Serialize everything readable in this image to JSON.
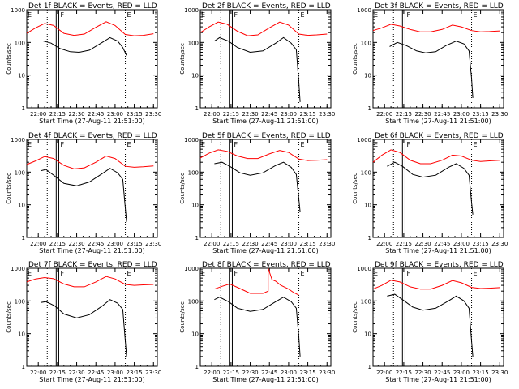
{
  "colors": {
    "events": "#000000",
    "lld": "#ff0000",
    "background": "#ffffff",
    "axes": "#000000"
  },
  "chart_data": [
    {
      "type": "line",
      "title": "Det 1f BLACK = Events, RED = LLD",
      "xlabel": "Start Time (27-Aug-11 21:51:00)",
      "ylabel": "Counts/sec",
      "yscale": "log",
      "ylim": [
        1,
        1000
      ],
      "xticks": [
        "22:00",
        "22:15",
        "22:30",
        "22:45",
        "23:00",
        "23:15",
        "23:30"
      ],
      "yticks": [
        "1",
        "10",
        "100",
        "1000"
      ],
      "markers": [
        "E",
        "F",
        "E"
      ],
      "series": [
        {
          "name": "Events",
          "color": "#000000",
          "x": [
            "22:04",
            "22:10",
            "22:17",
            "22:25",
            "22:32",
            "22:40",
            "22:48",
            "22:56",
            "23:02",
            "23:06",
            "23:09"
          ],
          "y": [
            110,
            95,
            65,
            52,
            50,
            58,
            90,
            140,
            110,
            70,
            40
          ]
        },
        {
          "name": "LLD",
          "color": "#ff0000",
          "x": [
            "21:51",
            "21:58",
            "22:05",
            "22:12",
            "22:20",
            "22:28",
            "22:36",
            "22:45",
            "22:53",
            "23:00",
            "23:08",
            "23:15",
            "23:22",
            "23:30"
          ],
          "y": [
            190,
            280,
            380,
            330,
            190,
            165,
            180,
            290,
            430,
            330,
            175,
            160,
            165,
            185
          ]
        }
      ]
    },
    {
      "type": "line",
      "title": "Det 2f BLACK = Events, RED = LLD",
      "xlabel": "Start Time (27-Aug-11 21:51:00)",
      "ylabel": "Counts/sec",
      "yscale": "log",
      "ylim": [
        1,
        1000
      ],
      "xticks": [
        "22:00",
        "22:15",
        "22:30",
        "22:45",
        "23:00",
        "23:15",
        "23:30"
      ],
      "yticks": [
        "1",
        "10",
        "100",
        "1000"
      ],
      "markers": [
        "E",
        "F",
        "E"
      ],
      "series": [
        {
          "name": "Events",
          "color": "#000000",
          "x": [
            "22:02",
            "22:06",
            "22:13",
            "22:20",
            "22:30",
            "22:40",
            "22:50",
            "22:56",
            "23:02",
            "23:06",
            "23:08",
            "23:09"
          ],
          "y": [
            110,
            140,
            110,
            70,
            50,
            55,
            95,
            140,
            95,
            60,
            6,
            1.5
          ]
        },
        {
          "name": "LLD",
          "color": "#ff0000",
          "x": [
            "21:51",
            "21:58",
            "22:05",
            "22:12",
            "22:20",
            "22:28",
            "22:36",
            "22:45",
            "22:53",
            "23:00",
            "23:08",
            "23:15",
            "23:22",
            "23:30"
          ],
          "y": [
            200,
            300,
            420,
            360,
            220,
            160,
            170,
            280,
            420,
            340,
            180,
            165,
            170,
            180
          ]
        }
      ]
    },
    {
      "type": "line",
      "title": "Det 3f BLACK = Events, RED = LLD",
      "xlabel": "Start Time (27-Aug-11 21:51:00)",
      "ylabel": "Counts/sec",
      "yscale": "log",
      "ylim": [
        1,
        1000
      ],
      "xticks": [
        "22:00",
        "22:15",
        "22:30",
        "22:45",
        "23:00",
        "23:15",
        "23:30"
      ],
      "yticks": [
        "1",
        "10",
        "100",
        "1000"
      ],
      "markers": [
        "E",
        "F",
        "E"
      ],
      "series": [
        {
          "name": "Events",
          "color": "#000000",
          "x": [
            "22:04",
            "22:10",
            "22:17",
            "22:25",
            "22:32",
            "22:40",
            "22:48",
            "22:56",
            "23:02",
            "23:06",
            "23:08",
            "23:09"
          ],
          "y": [
            75,
            100,
            80,
            55,
            48,
            52,
            80,
            110,
            90,
            55,
            8,
            2
          ]
        },
        {
          "name": "LLD",
          "color": "#ff0000",
          "x": [
            "21:51",
            "21:58",
            "22:05",
            "22:12",
            "22:20",
            "22:28",
            "22:36",
            "22:45",
            "22:53",
            "23:00",
            "23:08",
            "23:15",
            "23:22",
            "23:30"
          ],
          "y": [
            230,
            280,
            360,
            320,
            250,
            210,
            210,
            250,
            340,
            300,
            230,
            210,
            215,
            225
          ]
        }
      ]
    },
    {
      "type": "line",
      "title": "Det 4f BLACK = Events, RED = LLD",
      "xlabel": "Start Time (27-Aug-11 21:51:00)",
      "ylabel": "Counts/sec",
      "yscale": "log",
      "ylim": [
        1,
        1000
      ],
      "xticks": [
        "22:00",
        "22:15",
        "22:30",
        "22:45",
        "23:00",
        "23:15",
        "23:30"
      ],
      "yticks": [
        "1",
        "10",
        "100",
        "1000"
      ],
      "markers": [
        "E",
        "F",
        "E"
      ],
      "series": [
        {
          "name": "Events",
          "color": "#000000",
          "x": [
            "22:02",
            "22:06",
            "22:13",
            "22:20",
            "22:30",
            "22:40",
            "22:50",
            "22:56",
            "23:02",
            "23:06",
            "23:08",
            "23:09"
          ],
          "y": [
            110,
            120,
            75,
            45,
            38,
            50,
            90,
            130,
            95,
            60,
            8,
            3
          ]
        },
        {
          "name": "LLD",
          "color": "#ff0000",
          "x": [
            "21:51",
            "21:58",
            "22:05",
            "22:12",
            "22:20",
            "22:28",
            "22:36",
            "22:45",
            "22:53",
            "23:00",
            "23:08",
            "23:15",
            "23:22",
            "23:30"
          ],
          "y": [
            170,
            220,
            300,
            260,
            160,
            125,
            135,
            200,
            310,
            260,
            150,
            140,
            145,
            155
          ]
        }
      ]
    },
    {
      "type": "line",
      "title": "Det 5f BLACK = Events, RED = LLD",
      "xlabel": "Start Time (27-Aug-11 21:51:00)",
      "ylabel": "Counts/sec",
      "yscale": "log",
      "ylim": [
        1,
        1000
      ],
      "xticks": [
        "22:00",
        "22:15",
        "22:30",
        "22:45",
        "23:00",
        "23:15",
        "23:30"
      ],
      "yticks": [
        "1",
        "10",
        "100",
        "1000"
      ],
      "markers": [
        "E",
        "F",
        "E"
      ],
      "series": [
        {
          "name": "Events",
          "color": "#000000",
          "x": [
            "22:02",
            "22:08",
            "22:14",
            "22:22",
            "22:30",
            "22:40",
            "22:50",
            "22:56",
            "23:02",
            "23:06",
            "23:08",
            "23:09"
          ],
          "y": [
            180,
            200,
            150,
            95,
            80,
            95,
            160,
            200,
            140,
            85,
            15,
            6
          ]
        },
        {
          "name": "LLD",
          "color": "#ff0000",
          "x": [
            "21:51",
            "21:58",
            "22:05",
            "22:12",
            "22:20",
            "22:28",
            "22:36",
            "22:45",
            "22:53",
            "23:00",
            "23:08",
            "23:15",
            "23:22",
            "23:30"
          ],
          "y": [
            270,
            380,
            480,
            430,
            310,
            260,
            260,
            360,
            460,
            400,
            250,
            225,
            230,
            240
          ]
        }
      ]
    },
    {
      "type": "line",
      "title": "Det 6f BLACK = Events, RED = LLD",
      "xlabel": "Start Time (27-Aug-11 21:51:00)",
      "ylabel": "Counts/sec",
      "yscale": "log",
      "ylim": [
        1,
        1000
      ],
      "xticks": [
        "22:00",
        "22:15",
        "22:30",
        "22:45",
        "23:00",
        "23:15",
        "23:30"
      ],
      "yticks": [
        "1",
        "10",
        "100",
        "1000"
      ],
      "markers": [
        "E",
        "F",
        "E"
      ],
      "series": [
        {
          "name": "Events",
          "color": "#000000",
          "x": [
            "22:02",
            "22:08",
            "22:14",
            "22:22",
            "22:30",
            "22:40",
            "22:50",
            "22:56",
            "23:02",
            "23:06",
            "23:08",
            "23:09"
          ],
          "y": [
            150,
            200,
            150,
            85,
            70,
            80,
            140,
            180,
            130,
            80,
            12,
            5
          ]
        },
        {
          "name": "LLD",
          "color": "#ff0000",
          "x": [
            "21:51",
            "21:58",
            "22:05",
            "22:12",
            "22:20",
            "22:28",
            "22:36",
            "22:45",
            "22:53",
            "23:00",
            "23:08",
            "23:15",
            "23:22",
            "23:30"
          ],
          "y": [
            200,
            330,
            480,
            400,
            230,
            180,
            180,
            230,
            330,
            310,
            230,
            210,
            220,
            230
          ]
        }
      ]
    },
    {
      "type": "line",
      "title": "Det 7f BLACK = Events, RED = LLD",
      "xlabel": "Start Time (27-Aug-11 21:51:00)",
      "ylabel": "Counts/sec",
      "yscale": "log",
      "ylim": [
        1,
        1000
      ],
      "xticks": [
        "22:00",
        "22:15",
        "22:30",
        "22:45",
        "23:00",
        "23:15",
        "23:30"
      ],
      "yticks": [
        "1",
        "10",
        "100",
        "1000"
      ],
      "markers": [
        "E",
        "F",
        "E"
      ],
      "series": [
        {
          "name": "Events",
          "color": "#000000",
          "x": [
            "22:02",
            "22:06",
            "22:13",
            "22:20",
            "22:30",
            "22:40",
            "22:50",
            "22:56",
            "23:02",
            "23:06",
            "23:08",
            "23:09"
          ],
          "y": [
            90,
            95,
            70,
            40,
            30,
            38,
            70,
            110,
            85,
            55,
            6,
            2
          ]
        },
        {
          "name": "LLD",
          "color": "#ff0000",
          "x": [
            "21:51",
            "21:58",
            "22:05",
            "22:12",
            "22:20",
            "22:28",
            "22:36",
            "22:45",
            "22:53",
            "23:00",
            "23:08",
            "23:15",
            "23:22",
            "23:30"
          ],
          "y": [
            380,
            470,
            520,
            480,
            330,
            270,
            270,
            380,
            560,
            470,
            320,
            300,
            310,
            320
          ]
        }
      ]
    },
    {
      "type": "line",
      "title": "Det 8f BLACK = Events, RED = LLD",
      "xlabel": "Start Time (27-Aug-11 21:51:00)",
      "ylabel": "Counts/sec",
      "yscale": "log",
      "ylim": [
        1,
        1000
      ],
      "xticks": [
        "22:00",
        "22:15",
        "22:30",
        "22:45",
        "23:00",
        "23:15",
        "23:30"
      ],
      "yticks": [
        "1",
        "10",
        "100",
        "1000"
      ],
      "markers": [
        "E",
        "F",
        "E"
      ],
      "series": [
        {
          "name": "Events",
          "color": "#000000",
          "x": [
            "22:02",
            "22:06",
            "22:13",
            "22:20",
            "22:30",
            "22:40",
            "22:50",
            "22:56",
            "23:02",
            "23:06",
            "23:08",
            "23:09"
          ],
          "y": [
            110,
            130,
            95,
            60,
            48,
            55,
            95,
            130,
            95,
            60,
            8,
            2
          ]
        },
        {
          "name": "LLD",
          "color": "#ff0000",
          "x": [
            "22:02",
            "22:08",
            "22:14",
            "22:22",
            "22:30",
            "22:40",
            "22:44",
            "22:44",
            "22:47",
            "22:50",
            "22:54",
            "23:00",
            "23:04",
            "23:08"
          ],
          "y": [
            230,
            280,
            330,
            240,
            170,
            170,
            200,
            1000,
            450,
            400,
            300,
            230,
            180,
            150
          ]
        }
      ]
    },
    {
      "type": "line",
      "title": "Det 9f BLACK = Events, RED = LLD",
      "xlabel": "Start Time (27-Aug-11 21:51:00)",
      "ylabel": "Counts/sec",
      "yscale": "log",
      "ylim": [
        1,
        1000
      ],
      "xticks": [
        "22:00",
        "22:15",
        "22:30",
        "22:45",
        "23:00",
        "23:15",
        "23:30"
      ],
      "yticks": [
        "1",
        "10",
        "100",
        "1000"
      ],
      "markers": [
        "E",
        "F",
        "E"
      ],
      "series": [
        {
          "name": "Events",
          "color": "#000000",
          "x": [
            "22:02",
            "22:08",
            "22:14",
            "22:22",
            "22:30",
            "22:40",
            "22:50",
            "22:56",
            "23:02",
            "23:06",
            "23:08",
            "23:09"
          ],
          "y": [
            140,
            160,
            110,
            65,
            52,
            60,
            100,
            140,
            100,
            60,
            6,
            2
          ]
        },
        {
          "name": "LLD",
          "color": "#ff0000",
          "x": [
            "21:51",
            "21:58",
            "22:05",
            "22:12",
            "22:20",
            "22:28",
            "22:36",
            "22:45",
            "22:53",
            "23:00",
            "23:08",
            "23:15",
            "23:22",
            "23:30"
          ],
          "y": [
            230,
            300,
            430,
            380,
            270,
            230,
            230,
            300,
            420,
            360,
            260,
            240,
            245,
            255
          ]
        }
      ]
    }
  ]
}
